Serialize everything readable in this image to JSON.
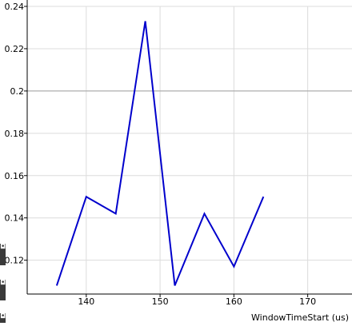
{
  "chart_data": {
    "type": "line",
    "xlabel": "WindowTimeStart (us)",
    "ylabel": "",
    "xlim": [
      132,
      176
    ],
    "ylim": [
      0.104,
      0.24
    ],
    "x_ticks": [
      140,
      150,
      160,
      170
    ],
    "y_ticks": [
      0.12,
      0.14,
      0.16,
      0.18,
      0.2,
      0.22,
      0.24
    ],
    "x_tick_labels": [
      "140",
      "150",
      "160",
      "170"
    ],
    "y_tick_labels": [
      "0.12",
      "0.14",
      "0.16",
      "0.18",
      "0.2",
      "0.22",
      "0.24"
    ],
    "grid": true,
    "reference_line_y": 0.2,
    "series": [
      {
        "color": "#0000cc",
        "x": [
          136,
          140,
          144,
          148,
          152,
          156,
          160,
          164
        ],
        "y": [
          0.108,
          0.15,
          0.142,
          0.233,
          0.108,
          0.142,
          0.117,
          0.15
        ]
      }
    ]
  },
  "colors": {
    "grid": "#dcdcdc",
    "reference_line": "#a0a0a0",
    "axis": "#000000"
  },
  "left_edge_icons": [
    "dark-square-icon",
    "dark-square-icon",
    "dark-square-icon"
  ]
}
